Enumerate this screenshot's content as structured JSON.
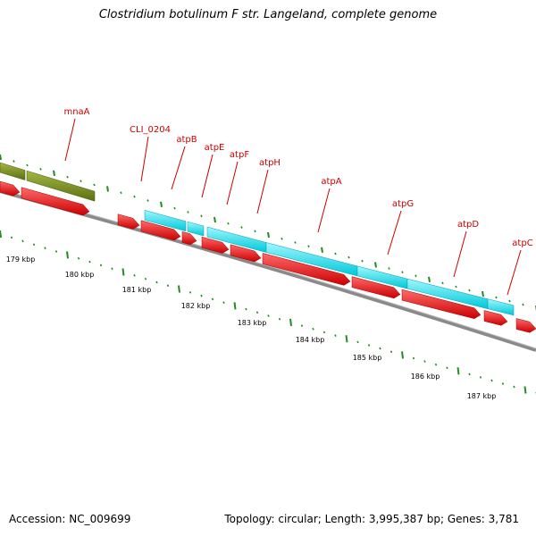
{
  "title": "Clostridium botulinum F str. Langeland, complete genome",
  "accession": "Accession: NC_009699",
  "summary": "Topology: circular; Length: 3,995,387 bp; Genes: 3,781",
  "colors": {
    "backbone": "#8a8a8a",
    "cds": "#ff0000",
    "olive_feature": "#7a8f1f",
    "cyan_feature": "#00e5ee",
    "ticks": "#228b22",
    "gene_label": "#cc0000"
  },
  "gene_labels": [
    "mnaA",
    "CLI_0204",
    "atpB",
    "atpE",
    "atpF",
    "atpH",
    "atpA",
    "atpG",
    "atpD",
    "atpC"
  ],
  "scale_labels": [
    "179 kbp",
    "180 kbp",
    "181 kbp",
    "182 kbp",
    "183 kbp",
    "184 kbp",
    "185 kbp",
    "186 kbp",
    "187 kbp"
  ]
}
